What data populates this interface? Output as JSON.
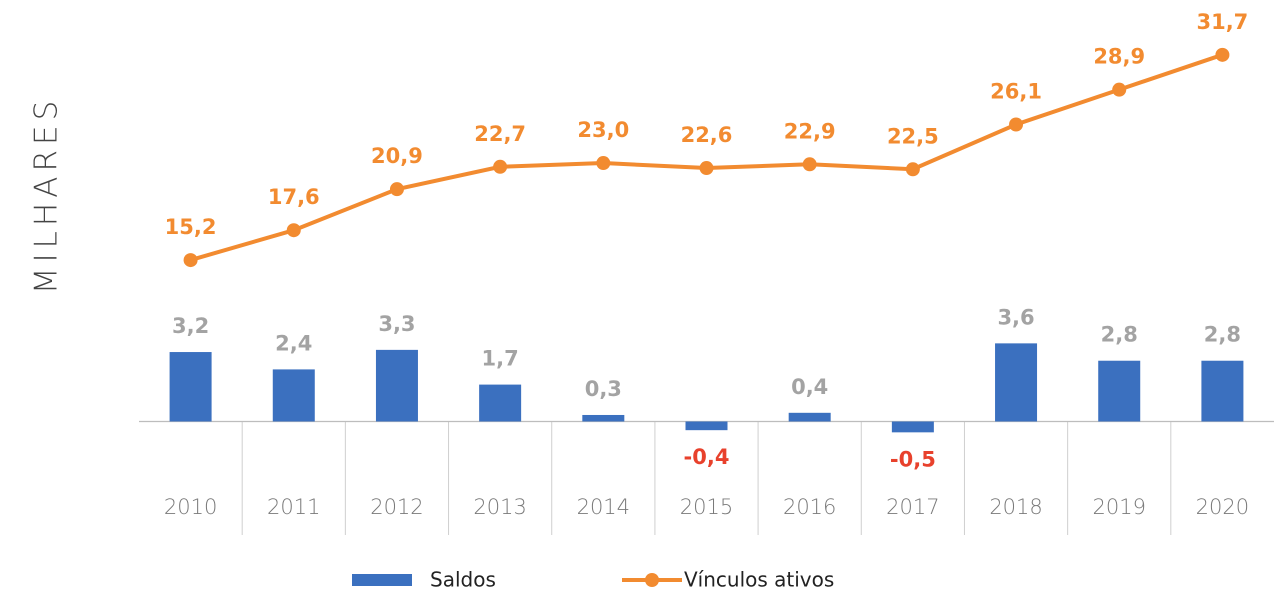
{
  "chart_data": {
    "type": "bar_line",
    "y_axis_label": "MILHARES",
    "categories": [
      "2010",
      "2011",
      "2012",
      "2013",
      "2014",
      "2015",
      "2016",
      "2017",
      "2018",
      "2019",
      "2020"
    ],
    "ylim": [
      -5,
      18.5
    ],
    "y2lim": [
      -6.5,
      34.5
    ],
    "series": [
      {
        "name": "Saldos",
        "type": "bar",
        "color": "#3b70bf",
        "label_color": "#a3a3a3",
        "negative_label_color": "#e8412c",
        "values": [
          3.2,
          2.4,
          3.3,
          1.7,
          0.3,
          -0.4,
          0.4,
          -0.5,
          3.6,
          2.8,
          2.8
        ],
        "value_labels": [
          "3,2",
          "2,4",
          "3,3",
          "1,7",
          "0,3",
          "-0,4",
          "0,4",
          "-0,5",
          "3,6",
          "2,8",
          "2,8"
        ]
      },
      {
        "name": "Vínculos ativos",
        "type": "line",
        "axis": "y2",
        "color": "#f28b30",
        "label_color": "#f28b30",
        "values": [
          15.2,
          17.6,
          20.9,
          22.7,
          23.0,
          22.6,
          22.9,
          22.5,
          26.1,
          28.9,
          31.7
        ],
        "value_labels": [
          "15,2",
          "17,6",
          "20,9",
          "22,7",
          "23,0",
          "22,6",
          "22,9",
          "22,5",
          "26,1",
          "28,9",
          "31,7"
        ]
      }
    ]
  }
}
